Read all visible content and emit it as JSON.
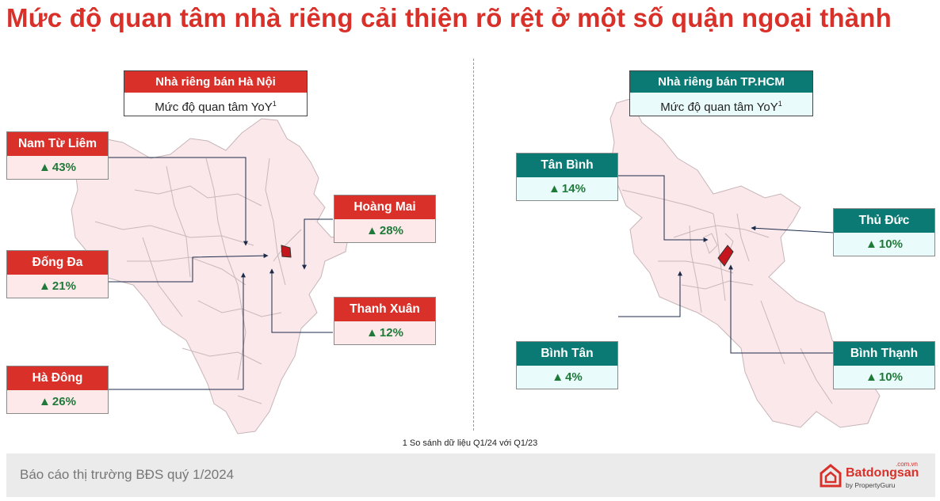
{
  "title": "Mức độ quan tâm nhà riêng cải thiện rõ rệt ở một số quận ngoại thành",
  "hanoi": {
    "header_title": "Nhà riêng bán Hà Nội",
    "header_sub": "Mức độ quan tâm YoY",
    "header_sup": "1",
    "districts": [
      {
        "name": "Nam Từ Liêm",
        "value": "43%"
      },
      {
        "name": "Đống Đa",
        "value": "21%"
      },
      {
        "name": "Hà Đông",
        "value": "26%"
      },
      {
        "name": "Hoàng Mai",
        "value": "28%"
      },
      {
        "name": "Thanh Xuân",
        "value": "12%"
      }
    ]
  },
  "hcm": {
    "header_title": "Nhà riêng bán TP.HCM",
    "header_sub": "Mức độ quan tâm YoY",
    "header_sup": "1",
    "districts": [
      {
        "name": "Tân Bình",
        "value": "14%"
      },
      {
        "name": "Thủ Đức",
        "value": "10%"
      },
      {
        "name": "Bình Tân",
        "value": "4%"
      },
      {
        "name": "Bình Thạnh",
        "value": "10%"
      }
    ]
  },
  "up_arrow": "▲",
  "footnote": "1 So sánh dữ liệu Q1/24 với Q1/23",
  "footer": {
    "report": "Báo cáo thị trường BĐS quý 1/2024",
    "brand_name": "Batdongsan",
    "brand_domain": ".com.vn",
    "brand_by": "by PropertyGuru"
  },
  "colors": {
    "accent_red": "#d9302a",
    "teal": "#0b7a75",
    "map_fill": "#fbe8ea",
    "up_green": "#1f7a3a"
  }
}
